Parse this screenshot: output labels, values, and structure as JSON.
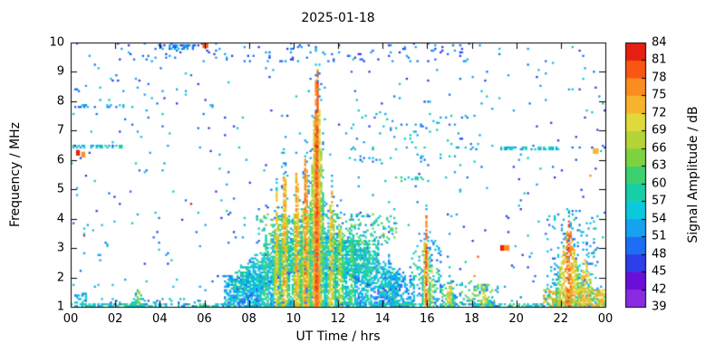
{
  "chart_data": {
    "type": "heatmap",
    "title": "2025-01-18",
    "xlabel": "UT Time / hrs",
    "ylabel": "Frequency / MHz",
    "colorbar_label": "Signal Amplitude / dB",
    "xlim": [
      0,
      24
    ],
    "ylim": [
      1,
      10
    ],
    "clim": [
      39,
      84
    ],
    "grid": false,
    "xticks": {
      "values": [
        0,
        2,
        4,
        6,
        8,
        10,
        12,
        14,
        16,
        18,
        20,
        22,
        24
      ],
      "labels": [
        "00",
        "02",
        "04",
        "06",
        "08",
        "10",
        "12",
        "14",
        "16",
        "18",
        "20",
        "22",
        "00"
      ]
    },
    "yticks": [
      1,
      2,
      3,
      4,
      5,
      6,
      7,
      8,
      9,
      10
    ],
    "colorbar_ticks": [
      39,
      42,
      45,
      48,
      51,
      54,
      57,
      60,
      63,
      66,
      69,
      72,
      75,
      78,
      81,
      84
    ],
    "palette": [
      "#8a2be2",
      "#6a0fd8",
      "#2c3fe8",
      "#1e6ef5",
      "#15a3f0",
      "#0cc8dc",
      "#16cfa6",
      "#3ed06e",
      "#7ed23f",
      "#b4d438",
      "#e0d93a",
      "#f7b32c",
      "#fb8c20",
      "#f95513",
      "#e62011"
    ],
    "background_color": "#ffffff",
    "features": [
      {
        "type": "bg",
        "prob": 0.01,
        "db0": 45,
        "db1": 58
      },
      {
        "type": "band",
        "t0": 2,
        "t1": 18.5,
        "f0": 9.35,
        "f1": 10,
        "prob": 0.05,
        "db0": 45,
        "db1": 54
      },
      {
        "type": "band",
        "t0": 12.5,
        "t1": 18.5,
        "f0": 5.8,
        "f1": 7.6,
        "prob": 0.03,
        "db0": 48,
        "db1": 60
      },
      {
        "type": "band",
        "t0": 0,
        "t1": 24,
        "f0": 1.0,
        "f1": 1.12,
        "prob": 0.5,
        "db0": 50,
        "db1": 62
      },
      {
        "type": "band",
        "t0": 6.9,
        "t1": 8.6,
        "f0": 1,
        "f1": 2.1,
        "prob": 0.5,
        "db0": 48,
        "db1": 58
      },
      {
        "type": "band",
        "t0": 13.8,
        "t1": 15.4,
        "f0": 1,
        "f1": 2.2,
        "prob": 0.45,
        "db0": 48,
        "db1": 58
      },
      {
        "type": "band",
        "t0": 9,
        "t1": 13.8,
        "f0": 2.2,
        "f1": 3.3,
        "prob": 0.5,
        "db0": 50,
        "db1": 63
      },
      {
        "type": "band",
        "t0": 8.3,
        "t1": 14.6,
        "f0": 3.1,
        "f1": 4.2,
        "prob": 0.2,
        "db0": 50,
        "db1": 66
      },
      {
        "type": "band",
        "t0": 21.2,
        "t1": 24,
        "f0": 1,
        "f1": 1.6,
        "prob": 0.55,
        "db0": 62,
        "db1": 78
      },
      {
        "type": "band",
        "t0": 0.15,
        "t1": 0.75,
        "f0": 1,
        "f1": 1.45,
        "prob": 0.5,
        "db0": 50,
        "db1": 58
      },
      {
        "type": "band",
        "t0": 1.2,
        "t1": 6.5,
        "f0": 1,
        "f1": 1.3,
        "prob": 0.1,
        "db0": 48,
        "db1": 60
      },
      {
        "type": "band",
        "t0": 15.3,
        "t1": 16.6,
        "f0": 1,
        "f1": 3.4,
        "prob": 0.15,
        "db0": 48,
        "db1": 63
      },
      {
        "type": "band",
        "t0": 16.6,
        "t1": 18.2,
        "f0": 1,
        "f1": 1.9,
        "prob": 0.22,
        "db0": 50,
        "db1": 66
      },
      {
        "type": "band",
        "t0": 18.2,
        "t1": 19.2,
        "f0": 1,
        "f1": 1.8,
        "prob": 0.25,
        "db0": 50,
        "db1": 66
      },
      {
        "type": "band",
        "t0": 21.3,
        "t1": 23.7,
        "f0": 1,
        "f1": 4.3,
        "prob": 0.08,
        "db0": 48,
        "db1": 60
      },
      {
        "type": "arc",
        "t0": 7.3,
        "t1": 14.7,
        "amp": 1.35
      },
      {
        "type": "spike",
        "t": 11.05,
        "fmax": 10.2,
        "w": 0.18,
        "core": 84,
        "drop": 10,
        "prob": 0.9
      },
      {
        "type": "spike",
        "t": 11.05,
        "fmax": 9.6,
        "w": 0.5,
        "core": 81,
        "drop": 30,
        "prob": 0.8
      },
      {
        "type": "spike",
        "t": 10.55,
        "fmax": 6.6,
        "w": 0.3,
        "core": 82,
        "drop": 27,
        "prob": 0.8
      },
      {
        "type": "spike",
        "t": 10.15,
        "fmax": 6.2,
        "w": 0.28,
        "core": 80,
        "drop": 27,
        "prob": 0.75
      },
      {
        "type": "spike",
        "t": 9.6,
        "fmax": 6.1,
        "w": 0.3,
        "core": 80,
        "drop": 28,
        "prob": 0.75
      },
      {
        "type": "spike",
        "t": 9.25,
        "fmax": 5.1,
        "w": 0.28,
        "core": 76,
        "drop": 26,
        "prob": 0.7
      },
      {
        "type": "spike",
        "t": 11.7,
        "fmax": 5.4,
        "w": 0.3,
        "core": 78,
        "drop": 26,
        "prob": 0.7
      },
      {
        "type": "spike",
        "t": 12.1,
        "fmax": 4.4,
        "w": 0.35,
        "core": 72,
        "drop": 22,
        "prob": 0.6
      },
      {
        "type": "spike",
        "t": 12.6,
        "fmax": 3.8,
        "w": 0.4,
        "core": 66,
        "drop": 16,
        "prob": 0.55
      },
      {
        "type": "spike",
        "t": 13.3,
        "fmax": 3.3,
        "w": 0.5,
        "core": 62,
        "drop": 12,
        "prob": 0.5
      },
      {
        "type": "spike",
        "t": 8.75,
        "fmax": 3.5,
        "w": 0.45,
        "core": 64,
        "drop": 14,
        "prob": 0.55
      },
      {
        "type": "spike",
        "t": 8.1,
        "fmax": 2.8,
        "w": 0.4,
        "core": 58,
        "drop": 10,
        "prob": 0.5
      },
      {
        "type": "spike",
        "t": 14.3,
        "fmax": 2.7,
        "w": 0.5,
        "core": 56,
        "drop": 8,
        "prob": 0.5
      },
      {
        "type": "spike",
        "t": 15.95,
        "fmax": 4.35,
        "w": 0.22,
        "core": 83,
        "drop": 30,
        "prob": 0.8
      },
      {
        "type": "spike",
        "t": 16.2,
        "fmax": 2.4,
        "w": 0.2,
        "core": 74,
        "drop": 22,
        "prob": 0.6
      },
      {
        "type": "spike",
        "t": 17.0,
        "fmax": 1.95,
        "w": 0.3,
        "core": 76,
        "drop": 22,
        "prob": 0.6
      },
      {
        "type": "spike",
        "t": 18.55,
        "fmax": 1.8,
        "w": 0.45,
        "core": 74,
        "drop": 20,
        "prob": 0.55
      },
      {
        "type": "spike",
        "t": 22.35,
        "fmax": 3.95,
        "w": 0.75,
        "core": 82,
        "drop": 26,
        "prob": 0.6
      },
      {
        "type": "spike",
        "t": 23.1,
        "fmax": 2.7,
        "w": 0.5,
        "core": 78,
        "drop": 22,
        "prob": 0.55
      },
      {
        "type": "spike",
        "t": 23.85,
        "fmax": 1.7,
        "w": 0.35,
        "core": 76,
        "drop": 18,
        "prob": 0.6
      },
      {
        "type": "spike",
        "t": 3.05,
        "fmax": 1.7,
        "w": 0.3,
        "core": 70,
        "drop": 20,
        "prob": 0.6
      },
      {
        "type": "hline",
        "t0": 0.0,
        "t1": 2.3,
        "f": 6.45,
        "prob": 0.5,
        "db0": 51,
        "db1": 60
      },
      {
        "type": "hline",
        "t0": 19.2,
        "t1": 21.9,
        "f": 6.4,
        "prob": 0.35,
        "db0": 51,
        "db1": 60
      },
      {
        "type": "hline",
        "t0": 0.2,
        "t1": 3.0,
        "f": 7.85,
        "prob": 0.22,
        "db0": 48,
        "db1": 57
      },
      {
        "type": "hline",
        "t0": 14.6,
        "t1": 16.6,
        "f": 5.35,
        "prob": 0.25,
        "db0": 54,
        "db1": 63
      },
      {
        "type": "hline",
        "t0": 4.0,
        "t1": 5.6,
        "f": 9.85,
        "prob": 0.45,
        "db0": 46,
        "db1": 55
      },
      {
        "type": "hline",
        "t0": 22.2,
        "t1": 24,
        "f": 6.45,
        "prob": 0.18,
        "db0": 45,
        "db1": 54
      },
      {
        "type": "dots",
        "list": [
          [
            0.35,
            6.25,
            82
          ],
          [
            0.55,
            6.2,
            77
          ],
          [
            19.35,
            3.02,
            82
          ],
          [
            19.55,
            3.0,
            77
          ],
          [
            6.05,
            9.9,
            79
          ],
          [
            23.55,
            6.3,
            74
          ]
        ]
      }
    ]
  }
}
